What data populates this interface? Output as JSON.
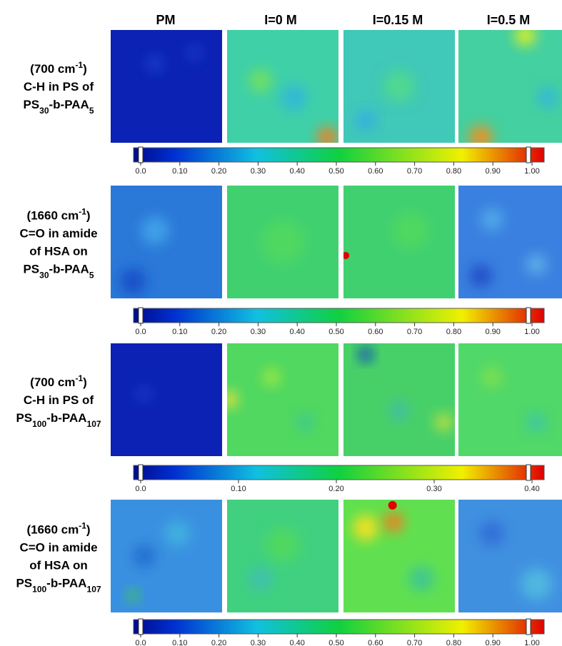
{
  "column_headers": [
    "PM",
    "I=0 M",
    "I=0.15 M",
    "I=0.5 M"
  ],
  "rows": [
    {
      "label": [
        [
          {
            "text": "(700 cm"
          },
          {
            "sup": "-1"
          },
          {
            "text": ")"
          }
        ],
        [
          {
            "text": "C-H in PS of"
          }
        ],
        [
          {
            "text": "PS"
          },
          {
            "sub": "30"
          },
          {
            "text": "-b-PAA"
          },
          {
            "sub": "5"
          }
        ]
      ],
      "colorbar": [
        "0.0",
        "0.10",
        "0.20",
        "0.30",
        "0.40",
        "0.50",
        "0.60",
        "0.70",
        "0.80",
        "0.90",
        "1.00"
      ]
    },
    {
      "label": [
        [
          {
            "text": "(1660 cm"
          },
          {
            "sup": "-1"
          },
          {
            "text": ")"
          }
        ],
        [
          {
            "text": "C=O in amide"
          }
        ],
        [
          {
            "text": "of HSA on"
          }
        ],
        [
          {
            "text": "PS"
          },
          {
            "sub": "30"
          },
          {
            "text": "-b-PAA"
          },
          {
            "sub": "5"
          }
        ]
      ],
      "colorbar": [
        "0.0",
        "0.10",
        "0.20",
        "0.30",
        "0.40",
        "0.50",
        "0.60",
        "0.70",
        "0.80",
        "0.90",
        "1.00"
      ]
    },
    {
      "label": [
        [
          {
            "text": "(700 cm"
          },
          {
            "sup": "-1"
          },
          {
            "text": ")"
          }
        ],
        [
          {
            "text": "C-H in PS of"
          }
        ],
        [
          {
            "text": "PS"
          },
          {
            "sub": "100"
          },
          {
            "text": "-b-PAA"
          },
          {
            "sub": "107"
          }
        ]
      ],
      "colorbar": [
        "0.0",
        "0.10",
        "0.20",
        "0.30",
        "0.40"
      ]
    },
    {
      "label": [
        [
          {
            "text": "(1660 cm"
          },
          {
            "sup": "-1"
          },
          {
            "text": ")"
          }
        ],
        [
          {
            "text": "C=O in amide"
          }
        ],
        [
          {
            "text": "of HSA on"
          }
        ],
        [
          {
            "text": "PS"
          },
          {
            "sub": "100"
          },
          {
            "text": "-b-PAA"
          },
          {
            "sub": "107"
          }
        ]
      ],
      "colorbar": [
        "0.0",
        "0.10",
        "0.20",
        "0.30",
        "0.40",
        "0.50",
        "0.60",
        "0.70",
        "0.80",
        "0.90",
        "1.00"
      ]
    }
  ]
}
